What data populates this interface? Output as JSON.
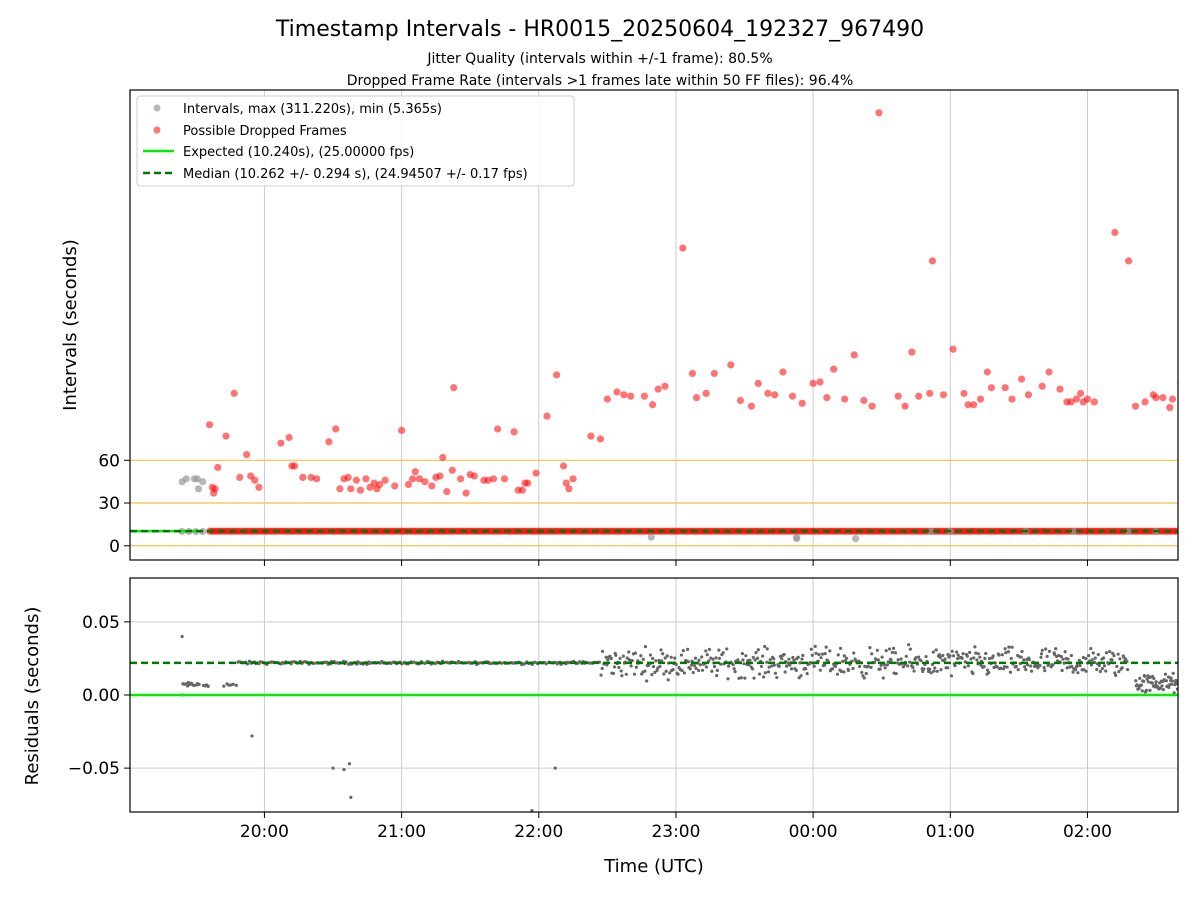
{
  "title": "Timestamp Intervals - HR0015_20250604_192327_967490",
  "subtitle_lines": [
    "Jitter Quality (intervals within +/-1 frame): 80.5%",
    "Dropped Frame Rate (intervals >1 frames late within 50 FF files): 96.4%"
  ],
  "colors": {
    "normal": "#999999",
    "dropped": "#ff0000",
    "expected": "#00ee00",
    "median": "#007700",
    "threshold": "#f5c242",
    "grid": "#cccccc",
    "residual": "#666666"
  },
  "chart_data": [
    {
      "type": "scatter",
      "panel": "intervals",
      "ylabel": "Intervals (seconds)",
      "xlabel": "",
      "x_units": "hours since 00:00 UTC on 2025-06-04",
      "xlim": [
        19.02,
        26.66
      ],
      "ylim": [
        -10,
        320
      ],
      "yticks": [
        0,
        30,
        60
      ],
      "ytick_labels": [
        "0",
        "30",
        "60"
      ],
      "xticks": [
        20,
        21,
        22,
        23,
        24,
        25,
        26
      ],
      "xtick_labels": [
        "20:00",
        "21:00",
        "22:00",
        "23:00",
        "00:00",
        "01:00",
        "02:00"
      ],
      "grid": true,
      "threshold_lines": [
        0,
        30,
        60
      ],
      "legend": {
        "placement": "top-left",
        "entries": [
          "Intervals, max (311.220s), min (5.365s)",
          "Possible Dropped Frames",
          "Expected (10.240s), (25.00000 fps)",
          "Median (10.262 +/- 0.294 s), (24.94507 +/- 0.17 fps)"
        ]
      },
      "expected_value": 10.24,
      "median_value": 10.262,
      "series": [
        {
          "name": "Intervals, max (311.220s), min (5.365s)",
          "style": "normal",
          "points": [
            [
              19.4,
              45
            ],
            [
              19.43,
              47
            ],
            [
              19.49,
              47
            ],
            [
              19.51,
              47
            ],
            [
              19.52,
              40
            ],
            [
              19.55,
              45
            ],
            [
              19.4,
              10
            ],
            [
              19.45,
              10
            ],
            [
              19.5,
              10
            ],
            [
              19.55,
              10
            ],
            [
              22.82,
              6
            ],
            [
              23.88,
              6
            ],
            [
              23.88,
              5
            ],
            [
              24.31,
              5
            ],
            [
              24.86,
              10
            ],
            [
              25.0,
              10
            ],
            [
              25.55,
              10
            ],
            [
              25.9,
              10
            ],
            [
              26.3,
              10
            ],
            [
              26.5,
              10
            ]
          ]
        },
        {
          "name": "Possible Dropped Frames",
          "style": "dropped",
          "points": [
            [
              19.6,
              85
            ],
            [
              19.62,
              41
            ],
            [
              19.63,
              37
            ],
            [
              19.64,
              40
            ],
            [
              19.66,
              55
            ],
            [
              19.72,
              77
            ],
            [
              19.78,
              107
            ],
            [
              19.82,
              48
            ],
            [
              19.87,
              64
            ],
            [
              19.9,
              49
            ],
            [
              19.93,
              46
            ],
            [
              19.96,
              41
            ],
            [
              20.12,
              72
            ],
            [
              20.18,
              76
            ],
            [
              20.2,
              56
            ],
            [
              20.22,
              56
            ],
            [
              20.28,
              48
            ],
            [
              20.34,
              48
            ],
            [
              20.38,
              47
            ],
            [
              20.47,
              73
            ],
            [
              20.52,
              82
            ],
            [
              20.55,
              40
            ],
            [
              20.58,
              47
            ],
            [
              20.61,
              48
            ],
            [
              20.63,
              40
            ],
            [
              20.67,
              46
            ],
            [
              20.7,
              39
            ],
            [
              20.74,
              47
            ],
            [
              20.77,
              41
            ],
            [
              20.8,
              44
            ],
            [
              20.82,
              40
            ],
            [
              20.84,
              43
            ],
            [
              20.88,
              46
            ],
            [
              20.95,
              42
            ],
            [
              21.0,
              81
            ],
            [
              21.05,
              43
            ],
            [
              21.08,
              47
            ],
            [
              21.1,
              52
            ],
            [
              21.13,
              47
            ],
            [
              21.17,
              45
            ],
            [
              21.22,
              42
            ],
            [
              21.25,
              48
            ],
            [
              21.28,
              49
            ],
            [
              21.3,
              62
            ],
            [
              21.33,
              38
            ],
            [
              21.37,
              53
            ],
            [
              21.38,
              111
            ],
            [
              21.43,
              47
            ],
            [
              21.47,
              37
            ],
            [
              21.5,
              50
            ],
            [
              21.53,
              49
            ],
            [
              21.6,
              46
            ],
            [
              21.63,
              46
            ],
            [
              21.67,
              47
            ],
            [
              21.7,
              82
            ],
            [
              21.75,
              47
            ],
            [
              21.82,
              80
            ],
            [
              21.85,
              39
            ],
            [
              21.88,
              39
            ],
            [
              21.9,
              44
            ],
            [
              21.92,
              44
            ],
            [
              21.98,
              51
            ],
            [
              22.06,
              91
            ],
            [
              22.13,
              120
            ],
            [
              22.18,
              56
            ],
            [
              22.2,
              44
            ],
            [
              22.22,
              40
            ],
            [
              22.25,
              47
            ],
            [
              22.38,
              77
            ],
            [
              22.45,
              75
            ],
            [
              22.5,
              103
            ],
            [
              22.57,
              108
            ],
            [
              22.62,
              106
            ],
            [
              22.67,
              105
            ],
            [
              22.77,
              105
            ],
            [
              22.83,
              99
            ],
            [
              22.87,
              110
            ],
            [
              22.92,
              112
            ],
            [
              23.05,
              209
            ],
            [
              23.12,
              121
            ],
            [
              23.15,
              104
            ],
            [
              23.22,
              107
            ],
            [
              23.28,
              121
            ],
            [
              23.4,
              127
            ],
            [
              23.47,
              102
            ],
            [
              23.55,
              98
            ],
            [
              23.6,
              114
            ],
            [
              23.67,
              107
            ],
            [
              23.72,
              106
            ],
            [
              23.78,
              122
            ],
            [
              23.85,
              105
            ],
            [
              23.92,
              100
            ],
            [
              24.0,
              114
            ],
            [
              24.05,
              115
            ],
            [
              24.1,
              104
            ],
            [
              24.15,
              124
            ],
            [
              24.23,
              103
            ],
            [
              24.3,
              134
            ],
            [
              24.37,
              102
            ],
            [
              24.43,
              98
            ],
            [
              24.48,
              304
            ],
            [
              24.62,
              105
            ],
            [
              24.67,
              98
            ],
            [
              24.72,
              136
            ],
            [
              24.77,
              105
            ],
            [
              24.85,
              107
            ],
            [
              24.87,
              200
            ],
            [
              24.95,
              106
            ],
            [
              25.02,
              138
            ],
            [
              25.1,
              107
            ],
            [
              25.13,
              99
            ],
            [
              25.17,
              99
            ],
            [
              25.22,
              103
            ],
            [
              25.27,
              122
            ],
            [
              25.3,
              111
            ],
            [
              25.4,
              111
            ],
            [
              25.45,
              103
            ],
            [
              25.52,
              117
            ],
            [
              25.57,
              106
            ],
            [
              25.67,
              112
            ],
            [
              25.72,
              122
            ],
            [
              25.8,
              110
            ],
            [
              25.85,
              101
            ],
            [
              25.88,
              101
            ],
            [
              25.92,
              103
            ],
            [
              25.95,
              107
            ],
            [
              25.97,
              101
            ],
            [
              26.0,
              103
            ],
            [
              26.05,
              101
            ],
            [
              26.2,
              220
            ],
            [
              26.3,
              200
            ],
            [
              26.35,
              98
            ],
            [
              26.42,
              101
            ],
            [
              26.48,
              106
            ],
            [
              26.5,
              104
            ],
            [
              26.55,
              104
            ],
            [
              26.6,
              97
            ],
            [
              26.62,
              103
            ],
            [
              26.68,
              115
            ]
          ]
        },
        {
          "name": "Expected (10.240s), (25.00000 fps)",
          "style": "expected",
          "points": [
            [
              19.02,
              10.24
            ],
            [
              19.55,
              10.24
            ]
          ]
        },
        {
          "name": "Median (10.262 +/- 0.294 s), (24.94507 +/- 0.17 fps)",
          "style": "median",
          "points": [
            [
              19.02,
              10.262
            ],
            [
              26.66,
              10.262
            ]
          ]
        }
      ]
    },
    {
      "type": "scatter",
      "panel": "residuals",
      "ylabel": "Residuals (seconds)",
      "xlabel": "Time (UTC)",
      "x_units": "hours since 00:00 UTC on 2025-06-04",
      "xlim": [
        19.02,
        26.66
      ],
      "ylim": [
        -0.08,
        0.08
      ],
      "yticks": [
        -0.05,
        0.0,
        0.05
      ],
      "ytick_labels": [
        "−0.05",
        "0.00",
        "0.05"
      ],
      "xticks": [
        20,
        21,
        22,
        23,
        24,
        25,
        26
      ],
      "xtick_labels": [
        "20:00",
        "21:00",
        "22:00",
        "23:00",
        "00:00",
        "01:00",
        "02:00"
      ],
      "grid": true,
      "expected_value": 0.0,
      "median_value": 0.022,
      "outliers": [
        [
          19.4,
          0.04
        ],
        [
          19.91,
          -0.028
        ],
        [
          20.5,
          -0.05
        ],
        [
          20.58,
          -0.051
        ],
        [
          20.62,
          -0.047
        ],
        [
          20.63,
          -0.07
        ],
        [
          21.95,
          -0.079
        ],
        [
          22.12,
          -0.05
        ],
        [
          19.4,
          0.0
        ]
      ],
      "segments": [
        {
          "x0": 19.4,
          "x1": 19.53,
          "center": 0.007,
          "spread": 0.001,
          "count": 12
        },
        {
          "x0": 19.55,
          "x1": 19.6,
          "center": 0.007,
          "spread": 0.001,
          "count": 4
        },
        {
          "x0": 19.7,
          "x1": 19.8,
          "center": 0.007,
          "spread": 0.001,
          "count": 6
        },
        {
          "x0": 19.8,
          "x1": 22.45,
          "center": 0.022,
          "spread": 0.0006,
          "count": 220
        },
        {
          "x0": 22.45,
          "x1": 26.3,
          "center": 0.022,
          "spread": 0.006,
          "count": 520
        },
        {
          "x0": 26.35,
          "x1": 26.66,
          "center": 0.008,
          "spread": 0.004,
          "count": 60
        }
      ]
    }
  ]
}
